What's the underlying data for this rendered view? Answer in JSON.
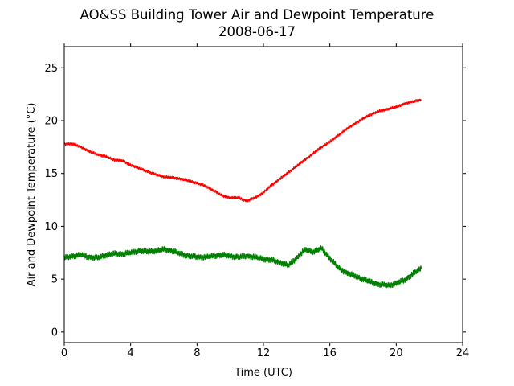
{
  "chart_data": {
    "type": "line",
    "title": "AO&SS Building Tower Air and Dewpoint Temperature",
    "subtitle": "2008-06-17",
    "xlabel": "Time (UTC)",
    "ylabel": "Air and Dewpoint Temperature (°C)",
    "xlim": [
      0,
      24
    ],
    "ylim": [
      -1,
      27
    ],
    "xticks": [
      0,
      4,
      8,
      12,
      16,
      20,
      24
    ],
    "yticks": [
      0,
      5,
      10,
      15,
      20,
      25
    ],
    "grid": false,
    "legend": "none",
    "series": [
      {
        "color": "#ff0000",
        "x": [
          0,
          0.5,
          1,
          1.5,
          2,
          2.5,
          3,
          3.5,
          4,
          4.5,
          5,
          5.5,
          6,
          6.5,
          7,
          7.5,
          8,
          8.5,
          9,
          9.5,
          10,
          10.5,
          11,
          11.5,
          12,
          12.5,
          13,
          13.5,
          14,
          14.5,
          15,
          15.5,
          16,
          16.5,
          17,
          17.5,
          18,
          18.5,
          19,
          19.5,
          20,
          20.5,
          21,
          21.5
        ],
        "y": [
          17.8,
          17.8,
          17.5,
          17.1,
          16.8,
          16.6,
          16.3,
          16.2,
          15.8,
          15.5,
          15.2,
          14.9,
          14.7,
          14.6,
          14.5,
          14.3,
          14.1,
          13.8,
          13.4,
          12.9,
          12.7,
          12.7,
          12.4,
          12.7,
          13.2,
          13.9,
          14.5,
          15.1,
          15.7,
          16.3,
          16.9,
          17.5,
          18.0,
          18.6,
          19.2,
          19.7,
          20.2,
          20.6,
          20.9,
          21.1,
          21.3,
          21.6,
          21.8,
          22.0
        ]
      },
      {
        "color": "#008000",
        "x": [
          0,
          0.5,
          1,
          1.5,
          2,
          2.5,
          3,
          3.5,
          4,
          4.5,
          5,
          5.5,
          6,
          6.5,
          7,
          7.5,
          8,
          8.5,
          9,
          9.5,
          10,
          10.5,
          11,
          11.5,
          12,
          12.5,
          13,
          13.5,
          14,
          14.5,
          15,
          15.5,
          16,
          16.5,
          17,
          17.5,
          18,
          18.5,
          19,
          19.5,
          20,
          20.5,
          21,
          21.5
        ],
        "y": [
          7.0,
          7.2,
          7.3,
          7.1,
          7.0,
          7.3,
          7.4,
          7.4,
          7.5,
          7.7,
          7.6,
          7.7,
          7.8,
          7.7,
          7.4,
          7.2,
          7.1,
          7.1,
          7.2,
          7.3,
          7.2,
          7.1,
          7.2,
          7.1,
          6.9,
          6.8,
          6.6,
          6.3,
          7.0,
          7.8,
          7.6,
          7.9,
          7.0,
          6.1,
          5.6,
          5.3,
          5.0,
          4.7,
          4.5,
          4.4,
          4.6,
          4.9,
          5.5,
          6.0
        ]
      }
    ]
  }
}
